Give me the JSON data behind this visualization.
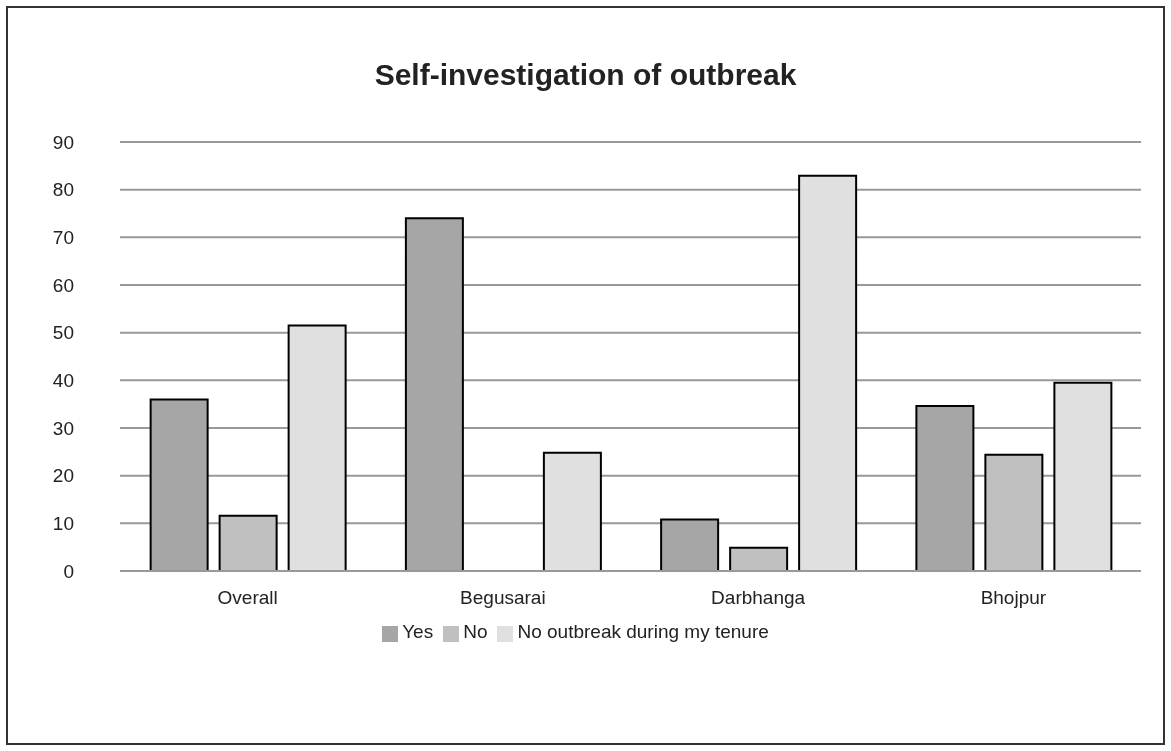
{
  "chart_data": {
    "type": "bar",
    "title": "Self-investigation of outbreak",
    "categories": [
      "Overall",
      "Begusarai",
      "Darbhanga",
      "Bhojpur"
    ],
    "series": [
      {
        "name": "Yes",
        "color": "#a6a6a6",
        "values": [
          36,
          74,
          10.8,
          34.6
        ]
      },
      {
        "name": "No",
        "color": "#c0c0c0",
        "values": [
          11.6,
          0,
          4.9,
          24.4
        ]
      },
      {
        "name": "No outbreak during my tenure",
        "color": "#e0e0e0",
        "values": [
          51.5,
          24.8,
          82.9,
          39.5
        ]
      }
    ],
    "ylim": [
      0,
      90
    ],
    "yticks": [
      0,
      10,
      20,
      30,
      40,
      50,
      60,
      70,
      80,
      90
    ],
    "grid": "y",
    "legend": "bottom"
  }
}
